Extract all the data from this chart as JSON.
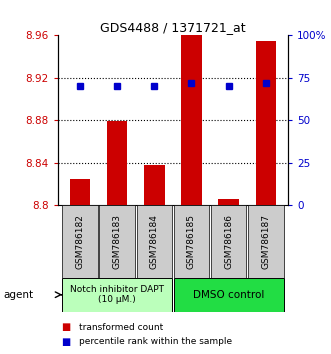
{
  "title": "GDS4488 / 1371721_at",
  "samples": [
    "GSM786182",
    "GSM786183",
    "GSM786184",
    "GSM786185",
    "GSM786186",
    "GSM786187"
  ],
  "bar_values": [
    8.825,
    8.879,
    8.838,
    8.96,
    8.806,
    8.955
  ],
  "percentile_right": [
    70,
    70,
    70,
    72,
    70,
    72
  ],
  "ylim_left": [
    8.8,
    8.96
  ],
  "ylim_right": [
    0,
    100
  ],
  "yticks_left": [
    8.8,
    8.84,
    8.88,
    8.92,
    8.96
  ],
  "ytick_labels_left": [
    "8.8",
    "8.84",
    "8.88",
    "8.92",
    "8.96"
  ],
  "yticks_right": [
    0,
    25,
    50,
    75,
    100
  ],
  "ytick_labels_right": [
    "0",
    "25",
    "50",
    "75",
    "100%"
  ],
  "bar_color": "#cc0000",
  "dot_color": "#0000cc",
  "group1_label": "Notch inhibitor DAPT\n(10 μM.)",
  "group2_label": "DMSO control",
  "group1_color": "#bbffbb",
  "group2_color": "#22dd44",
  "group1_indices": [
    0,
    1,
    2
  ],
  "group2_indices": [
    3,
    4,
    5
  ],
  "legend_bar_label": "transformed count",
  "legend_dot_label": "percentile rank within the sample",
  "agent_label": "agent",
  "sample_box_color": "#cccccc",
  "grid_color": "#000000"
}
